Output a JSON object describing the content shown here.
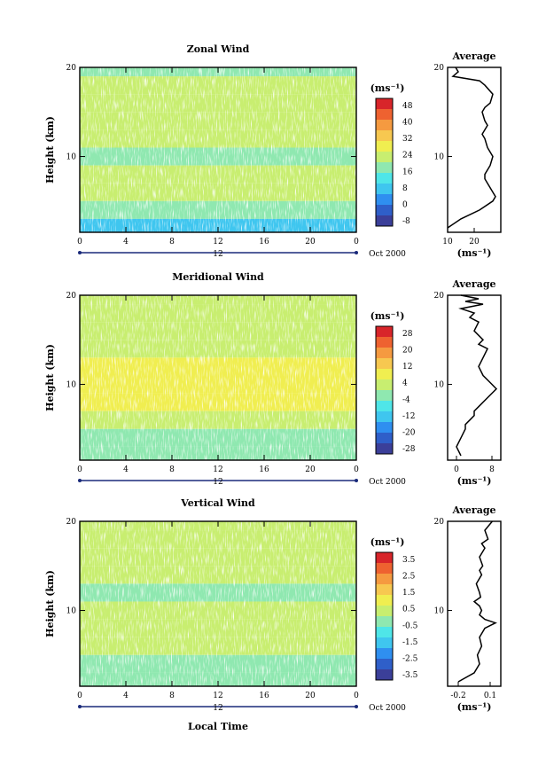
{
  "figure": {
    "xlabel": "Local Time",
    "colors": {
      "palette": [
        "#3b3f99",
        "#2f5fc9",
        "#2f8ff0",
        "#3fc6ef",
        "#4fe6e8",
        "#8fe8b0",
        "#c8ee70",
        "#f0ee50",
        "#f7c850",
        "#f59a40",
        "#ee6230",
        "#d8252a"
      ]
    },
    "panels": [
      {
        "title": "Zonal Wind",
        "ylabel": "Height (km)",
        "yticks": [
          "20",
          "10"
        ],
        "xticks": [
          "0",
          "4",
          "8",
          "12",
          "16",
          "20",
          "0"
        ],
        "day_label": "12",
        "date_label": "Oct 2000",
        "cbar_unit": "(ms⁻¹)",
        "cbar_labels": [
          "48",
          "40",
          "32",
          "24",
          "16",
          "8",
          "0",
          "-8"
        ],
        "avg_title": "Average",
        "avg_yticks": [
          "20",
          "10"
        ],
        "avg_xticks": [
          "10",
          "20"
        ],
        "avg_unit": "(ms⁻¹)"
      },
      {
        "title": "Meridional Wind",
        "ylabel": "Height (km)",
        "yticks": [
          "20",
          "10"
        ],
        "xticks": [
          "0",
          "4",
          "8",
          "12",
          "16",
          "20",
          "0"
        ],
        "day_label": "12",
        "date_label": "Oct 2000",
        "cbar_unit": "(ms⁻¹)",
        "cbar_labels": [
          "28",
          "20",
          "12",
          "4",
          "-4",
          "-12",
          "-20",
          "-28"
        ],
        "avg_title": "Average",
        "avg_yticks": [
          "20",
          "10"
        ],
        "avg_xticks": [
          "0",
          "8"
        ],
        "avg_unit": "(ms⁻¹)"
      },
      {
        "title": "Vertical Wind",
        "ylabel": "Height (km)",
        "yticks": [
          "20",
          "10"
        ],
        "xticks": [
          "0",
          "4",
          "8",
          "12",
          "16",
          "20",
          "0"
        ],
        "day_label": "12",
        "date_label": "Oct 2000",
        "cbar_unit": "(ms⁻¹)",
        "cbar_labels": [
          "3.5",
          "2.5",
          "1.5",
          "0.5",
          "-0.5",
          "-1.5",
          "-2.5",
          "-3.5"
        ],
        "avg_title": "Average",
        "avg_yticks": [
          "20",
          "10"
        ],
        "avg_xticks": [
          "-0.2",
          "0.1"
        ],
        "avg_unit": "(ms⁻¹)"
      }
    ]
  },
  "chart_data": [
    {
      "type": "heatmap",
      "title": "Zonal Wind",
      "xlabel": "",
      "ylabel": "Height (km)",
      "x_range": [
        0,
        24
      ],
      "ylim": [
        1.5,
        20
      ],
      "colorbar": {
        "unit": "(ms⁻¹)",
        "ticks": [
          48,
          40,
          32,
          24,
          16,
          8,
          0,
          -8
        ]
      },
      "profile_rows": [
        {
          "height": 20,
          "value": 18
        },
        {
          "height": 18,
          "value": 20
        },
        {
          "height": 16,
          "value": 22
        },
        {
          "height": 14,
          "value": 20
        },
        {
          "height": 12,
          "value": 20
        },
        {
          "height": 10,
          "value": 17
        },
        {
          "height": 8,
          "value": 24
        },
        {
          "height": 6,
          "value": 20
        },
        {
          "height": 4,
          "value": 16
        },
        {
          "height": 2,
          "value": 10
        }
      ]
    },
    {
      "type": "line",
      "title": "Average",
      "xlabel": "(ms⁻¹)",
      "ylabel": "",
      "xlim": [
        10,
        30
      ],
      "ylim": [
        1.5,
        20
      ],
      "x": [
        10,
        15,
        22,
        27,
        28,
        27,
        26,
        25,
        24,
        24,
        25,
        26,
        27,
        26,
        25,
        24,
        23,
        24,
        25,
        24,
        23,
        24,
        26,
        27,
        24,
        22,
        12,
        14,
        13
      ],
      "y": [
        2,
        3,
        4,
        5,
        5.5,
        6,
        6.5,
        7,
        7.5,
        8,
        8.5,
        9,
        10,
        10.5,
        11,
        12,
        12.5,
        13,
        13.5,
        14,
        15,
        15.5,
        16,
        17,
        18,
        18.5,
        19,
        19.5,
        20
      ]
    },
    {
      "type": "heatmap",
      "title": "Meridional Wind",
      "xlabel": "",
      "ylabel": "Height (km)",
      "x_range": [
        0,
        24
      ],
      "ylim": [
        1.5,
        20
      ],
      "colorbar": {
        "unit": "(ms⁻¹)",
        "ticks": [
          28,
          20,
          12,
          4,
          -4,
          -12,
          -20,
          -28
        ]
      },
      "profile_rows": [
        {
          "height": 20,
          "value": 0
        },
        {
          "height": 18,
          "value": 2
        },
        {
          "height": 16,
          "value": 4
        },
        {
          "height": 14,
          "value": 4
        },
        {
          "height": 12,
          "value": 6
        },
        {
          "height": 10,
          "value": 8
        },
        {
          "height": 8,
          "value": 5
        },
        {
          "height": 6,
          "value": 2
        },
        {
          "height": 4,
          "value": -2
        },
        {
          "height": 2,
          "value": -1
        }
      ]
    },
    {
      "type": "line",
      "title": "Average",
      "xlabel": "(ms⁻¹)",
      "ylabel": "",
      "xlim": [
        -2,
        10
      ],
      "ylim": [
        1.5,
        20
      ],
      "x": [
        1,
        0,
        1,
        2,
        2,
        3,
        4,
        4,
        5,
        7,
        9,
        8,
        7,
        6,
        5,
        6,
        7,
        5,
        6,
        4,
        5,
        3,
        4,
        1,
        6,
        2,
        5,
        1
      ],
      "y": [
        2,
        3,
        4,
        5,
        5.5,
        6,
        6.5,
        7,
        7.5,
        8.5,
        9.5,
        10,
        10.5,
        11,
        12,
        13,
        14,
        14.5,
        15,
        16,
        17,
        17.5,
        18,
        18.5,
        19,
        19.3,
        19.6,
        20
      ]
    },
    {
      "type": "heatmap",
      "title": "Vertical Wind",
      "xlabel": "Local Time",
      "ylabel": "Height (km)",
      "x_range": [
        0,
        24
      ],
      "ylim": [
        1.5,
        20
      ],
      "colorbar": {
        "unit": "(ms⁻¹)",
        "ticks": [
          3.5,
          2.5,
          1.5,
          0.5,
          -0.5,
          -1.5,
          -2.5,
          -3.5
        ]
      },
      "profile_rows": [
        {
          "height": 20,
          "value": 0.1
        },
        {
          "height": 18,
          "value": 0
        },
        {
          "height": 16,
          "value": 0
        },
        {
          "height": 14,
          "value": 0
        },
        {
          "height": 12,
          "value": -0.1
        },
        {
          "height": 10,
          "value": 0
        },
        {
          "height": 8,
          "value": 0.1
        },
        {
          "height": 6,
          "value": 0
        },
        {
          "height": 4,
          "value": -0.1
        },
        {
          "height": 2,
          "value": -0.2
        }
      ]
    },
    {
      "type": "line",
      "title": "Average",
      "xlabel": "(ms⁻¹)",
      "ylabel": "",
      "xlim": [
        -0.3,
        0.2
      ],
      "ylim": [
        1.5,
        20
      ],
      "x": [
        -0.2,
        -0.05,
        0,
        -0.02,
        0.02,
        0.0,
        0.05,
        0.1,
        0.15,
        0.05,
        0.0,
        0.02,
        0.0,
        -0.05,
        0.01,
        0.0,
        -0.03,
        0.02,
        0.0,
        0.03,
        0.0,
        0.05,
        0.02,
        0.08,
        0.05,
        0.12
      ],
      "y": [
        2,
        3,
        4,
        5,
        6,
        7,
        8,
        8.3,
        8.6,
        9,
        9.5,
        10,
        10.5,
        11,
        11.5,
        12,
        13,
        14,
        14.5,
        15,
        16,
        17,
        17.5,
        18,
        19,
        20
      ]
    }
  ]
}
